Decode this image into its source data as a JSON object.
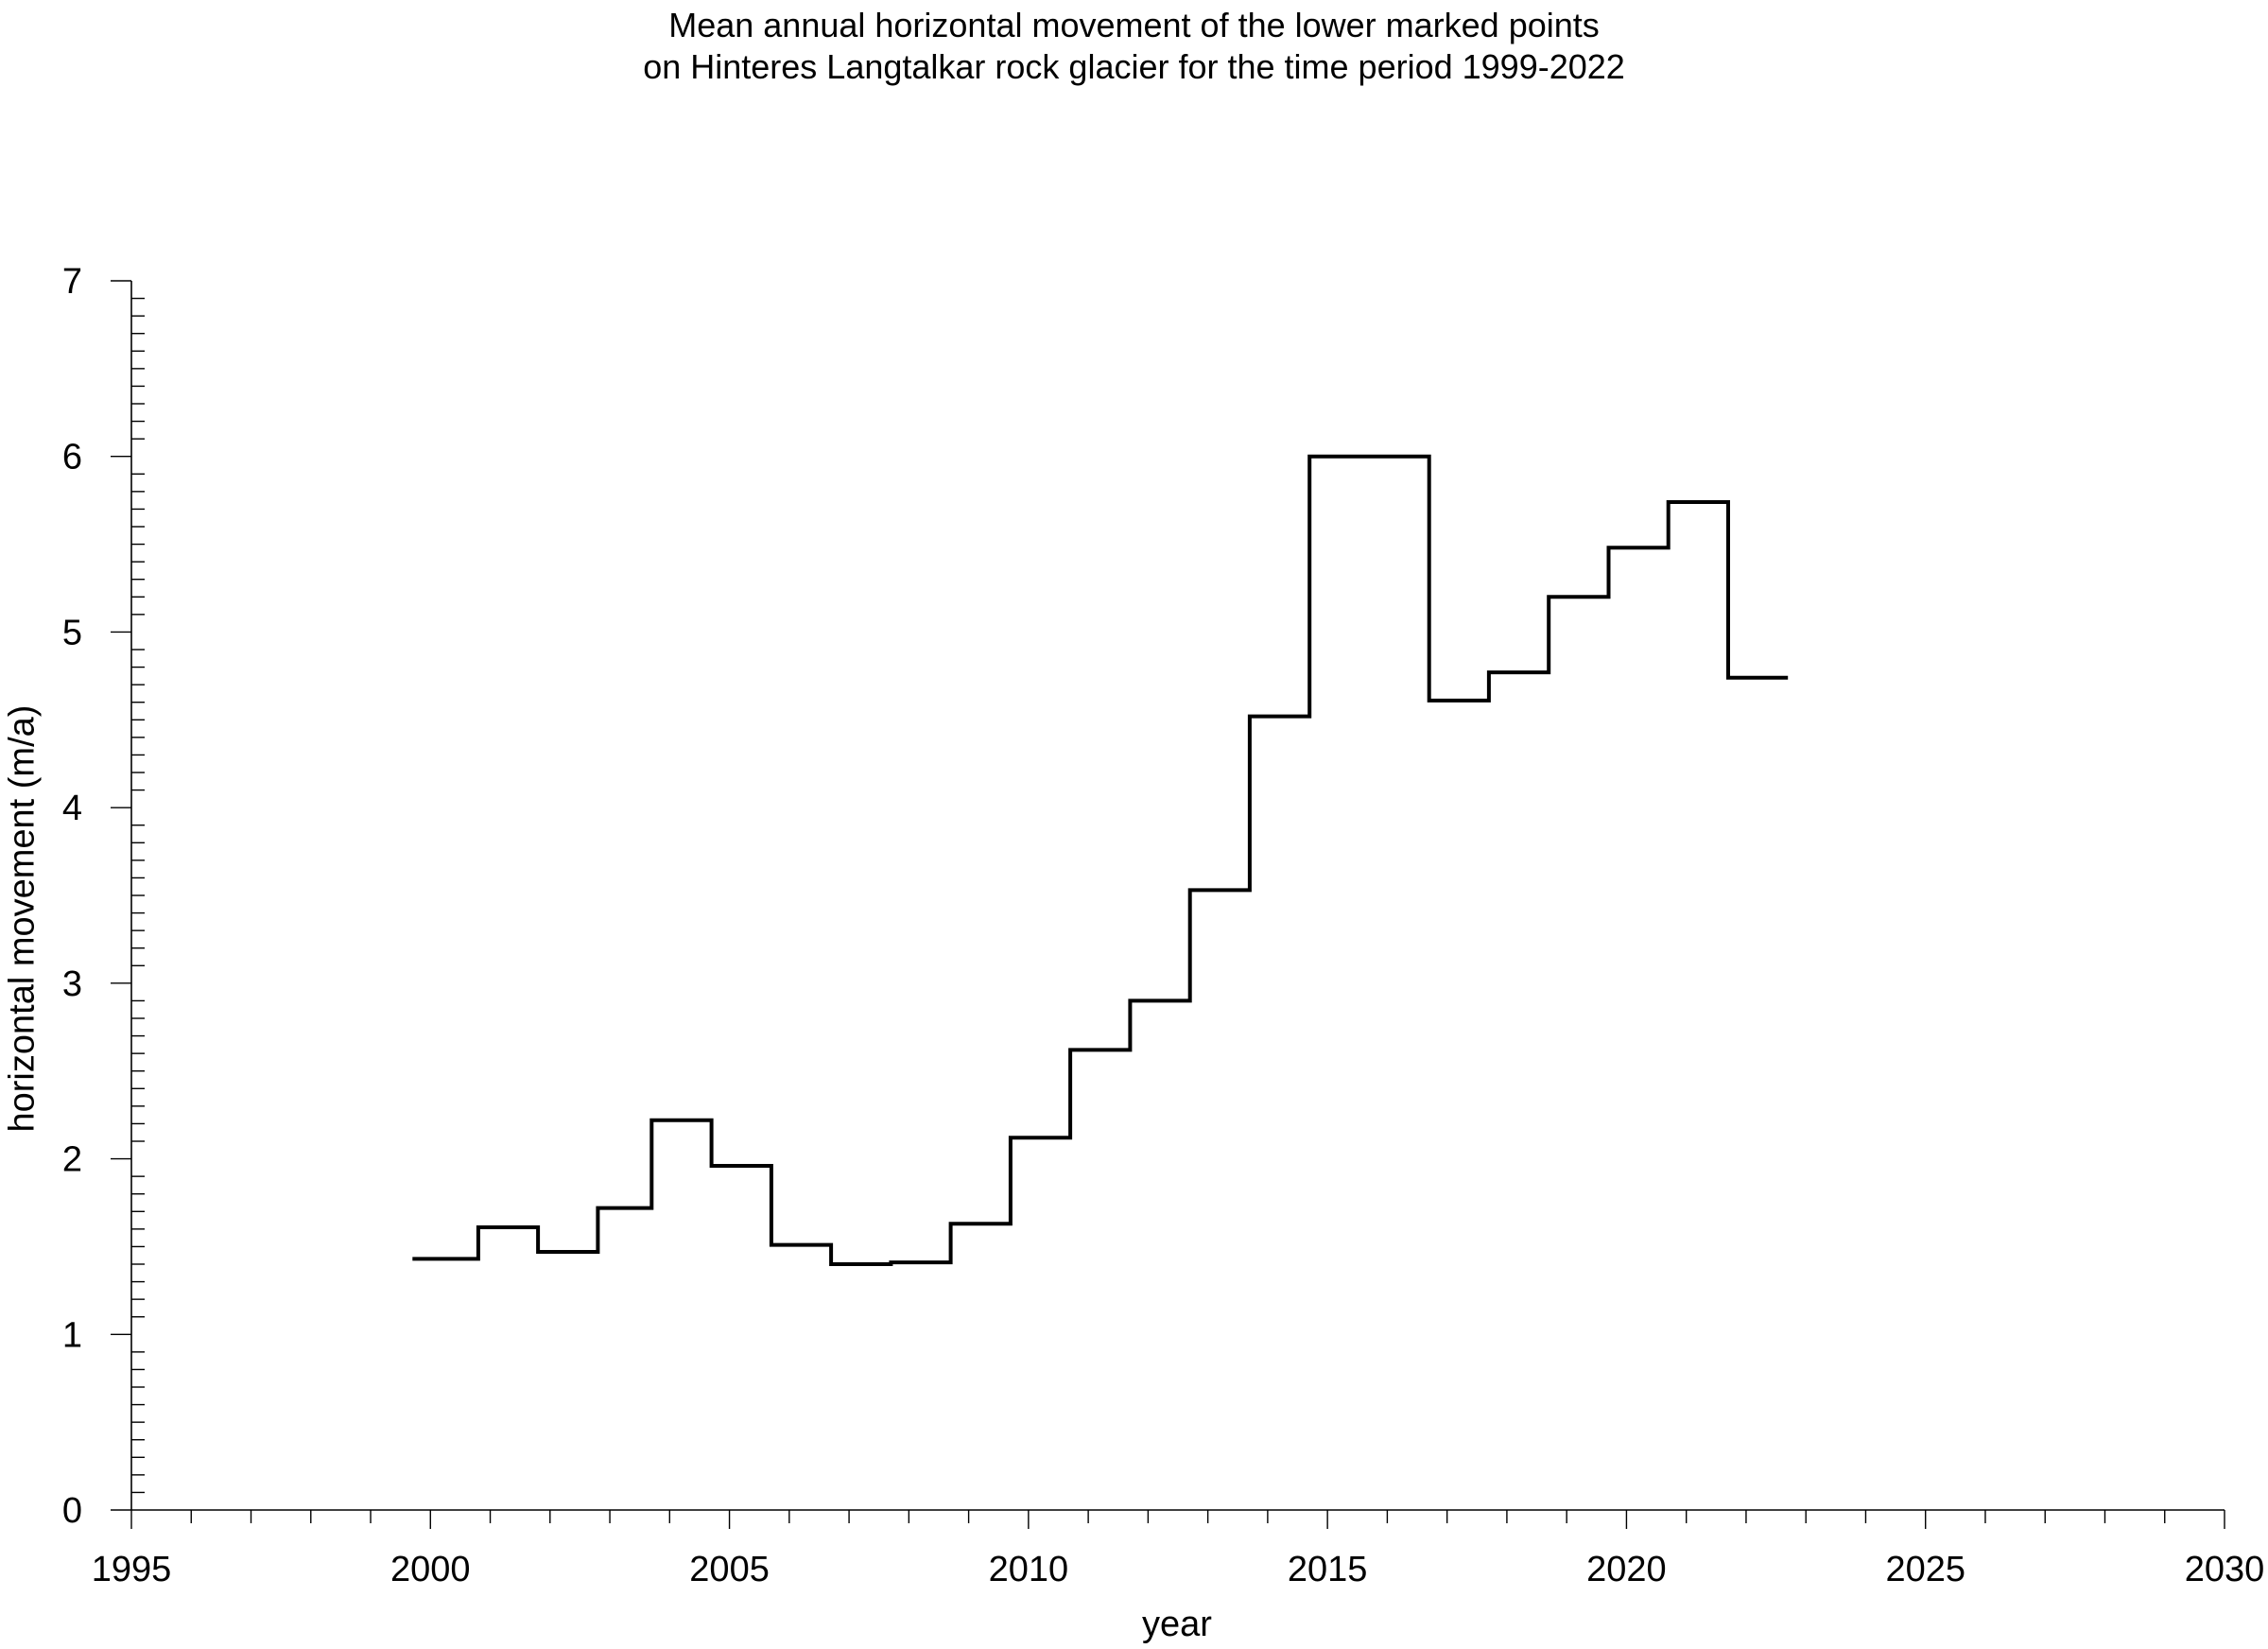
{
  "chart_data": {
    "type": "line",
    "style": "step",
    "title": "Mean annual horizontal movement of the lower marked points",
    "subtitle": "on Hinteres Langtalkar rock glacier for the time period 1999-2022",
    "xlabel": "year",
    "ylabel": "horizontal movement (m/a)",
    "xlim": [
      1995,
      2030
    ],
    "ylim": [
      0,
      7
    ],
    "x_ticks": [
      1995,
      2000,
      2005,
      2010,
      2015,
      2020,
      2025,
      2030
    ],
    "y_ticks": [
      0,
      1,
      2,
      3,
      4,
      5,
      6,
      7
    ],
    "grid": false,
    "series": [
      {
        "periods": [
          {
            "from": 1999.7,
            "to": 2000.8,
            "value": 1.43
          },
          {
            "from": 2000.8,
            "to": 2001.8,
            "value": 1.61
          },
          {
            "from": 2001.8,
            "to": 2002.8,
            "value": 1.47
          },
          {
            "from": 2002.8,
            "to": 2003.7,
            "value": 1.72
          },
          {
            "from": 2003.7,
            "to": 2004.7,
            "value": 2.22
          },
          {
            "from": 2004.7,
            "to": 2005.7,
            "value": 1.96
          },
          {
            "from": 2005.7,
            "to": 2006.7,
            "value": 1.51
          },
          {
            "from": 2006.7,
            "to": 2007.7,
            "value": 1.4
          },
          {
            "from": 2007.7,
            "to": 2008.7,
            "value": 1.41
          },
          {
            "from": 2008.7,
            "to": 2009.7,
            "value": 1.63
          },
          {
            "from": 2009.7,
            "to": 2010.7,
            "value": 2.12
          },
          {
            "from": 2010.7,
            "to": 2011.7,
            "value": 2.62
          },
          {
            "from": 2011.7,
            "to": 2012.7,
            "value": 2.9
          },
          {
            "from": 2012.7,
            "to": 2013.7,
            "value": 3.53
          },
          {
            "from": 2013.7,
            "to": 2014.7,
            "value": 4.52
          },
          {
            "from": 2014.7,
            "to": 2016.7,
            "value": 6.0
          },
          {
            "from": 2016.7,
            "to": 2017.7,
            "value": 4.61
          },
          {
            "from": 2017.7,
            "to": 2018.7,
            "value": 4.77
          },
          {
            "from": 2018.7,
            "to": 2019.7,
            "value": 5.2
          },
          {
            "from": 2019.7,
            "to": 2020.7,
            "value": 5.48
          },
          {
            "from": 2020.7,
            "to": 2021.7,
            "value": 5.74
          },
          {
            "from": 2021.7,
            "to": 2022.7,
            "value": 4.74
          }
        ]
      }
    ]
  }
}
